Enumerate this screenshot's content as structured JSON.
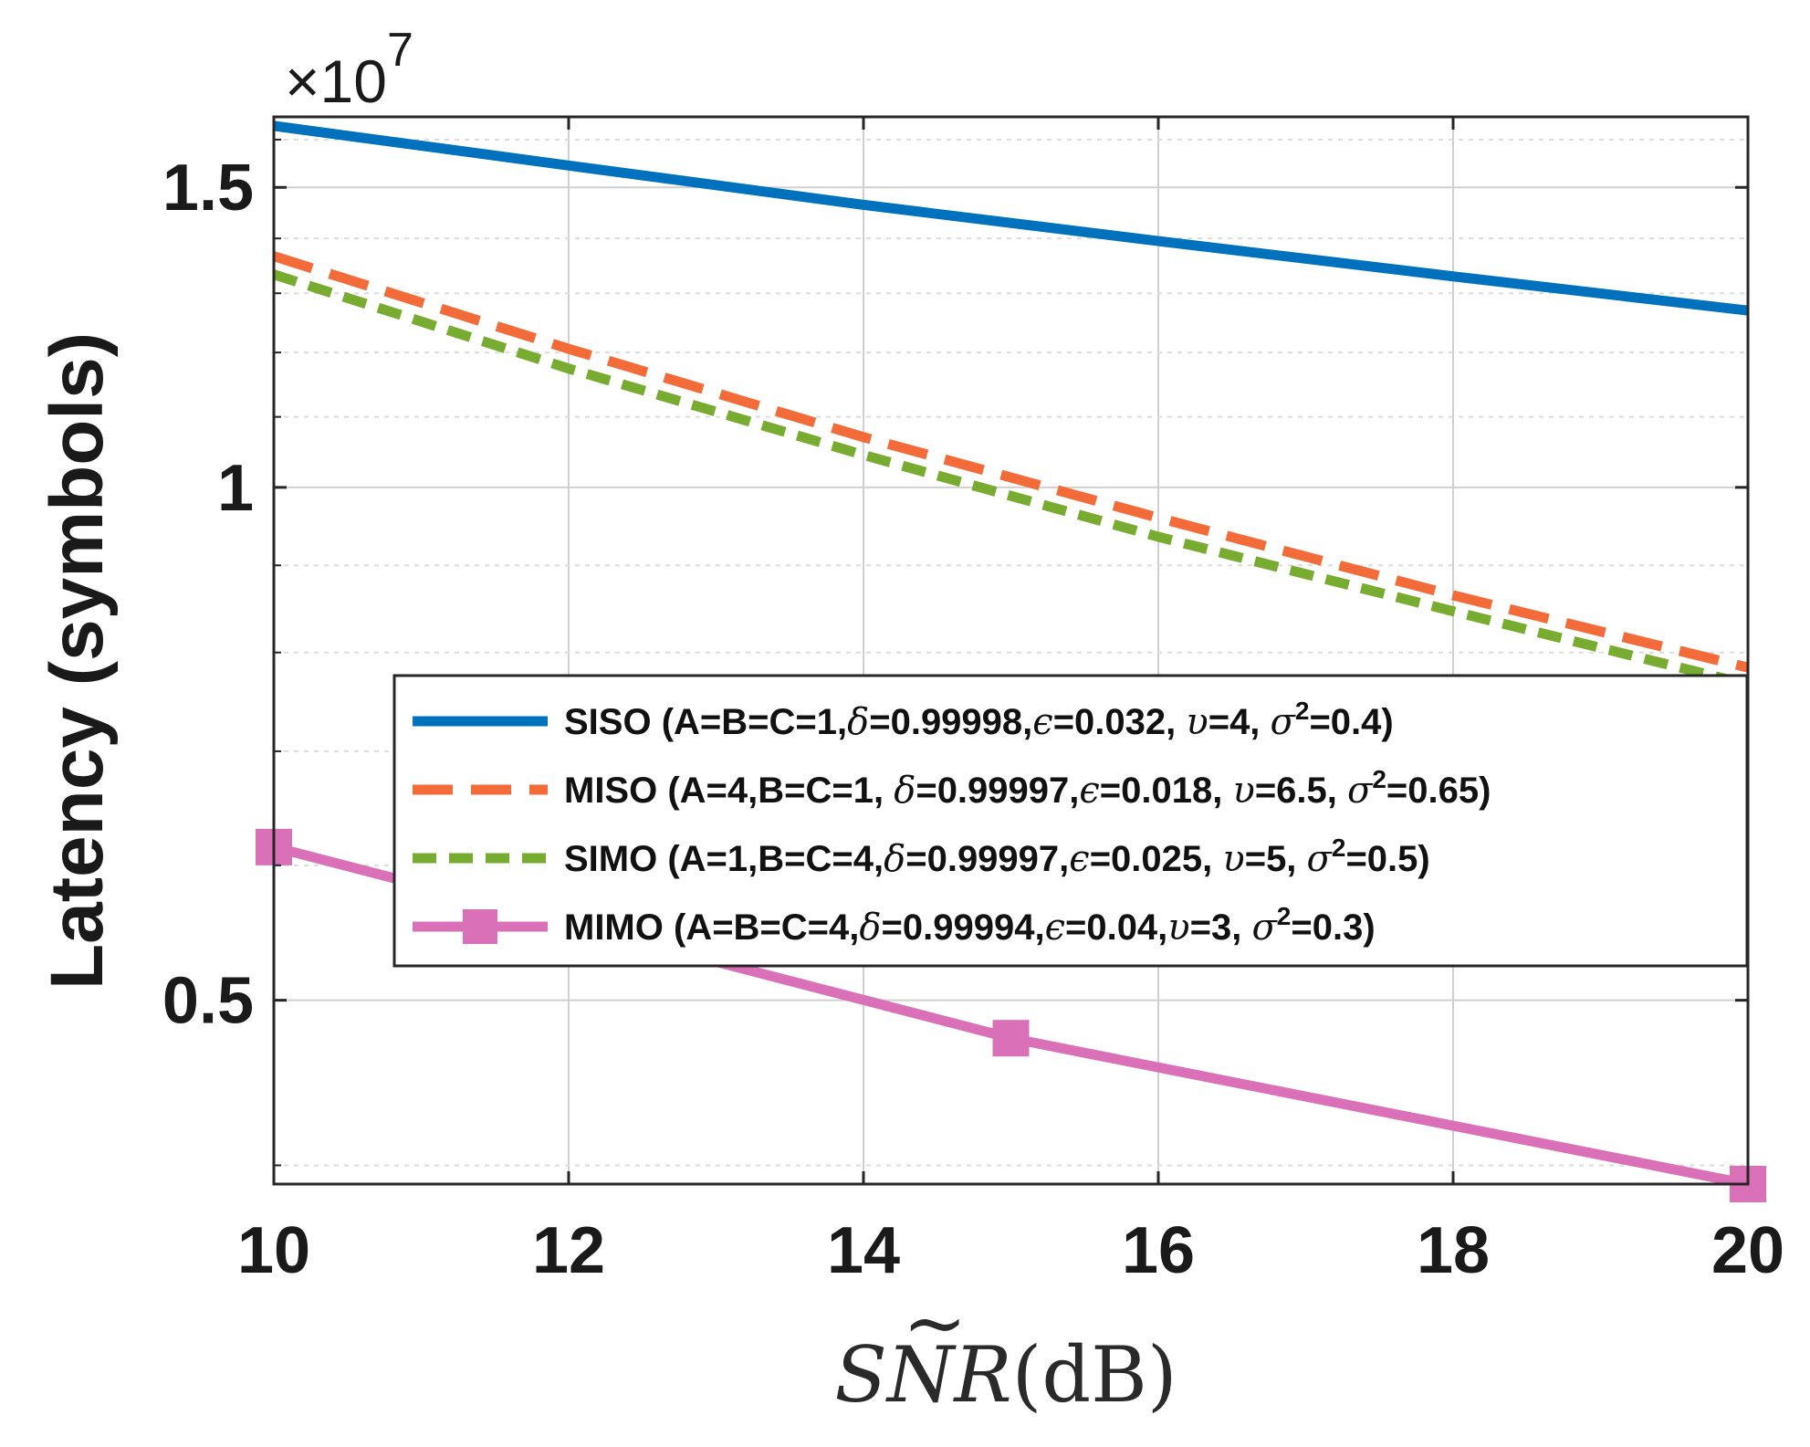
{
  "chart_data": {
    "type": "line",
    "title": "",
    "xlabel": "SÑR(dB)",
    "xlabel_parts": {
      "s": "S",
      "n": "N",
      "tilde": "~",
      "r": "R",
      "unit": "(dB)"
    },
    "ylabel": "Latency (symbols)",
    "y_exponent_label": "×10",
    "y_exponent_power": "7",
    "y_scale": "log",
    "xlim": [
      10,
      20
    ],
    "ylim": [
      0.39,
      1.65
    ],
    "x_ticks": [
      "10",
      "12",
      "14",
      "16",
      "18",
      "20"
    ],
    "x_tick_values": [
      10,
      12,
      14,
      16,
      18,
      20
    ],
    "y_ticks": [
      "0.5",
      "1",
      "1.5"
    ],
    "y_tick_values": [
      0.5,
      1.0,
      1.5
    ],
    "grid": true,
    "legend_position": "center-right",
    "series": [
      {
        "name": "SISO",
        "legend": "SISO (A=B=C=1,δ=0.99998,ϵ=0.032, υ=4, σ²=0.4)",
        "legend_head": "SISO (A=B=C=1,",
        "legend_tail": "=0.99998,",
        "legend_eps": "=0.032, ",
        "legend_nu": "=4, ",
        "legend_sigma": "=0.4)",
        "color": "#0072BD",
        "style": "solid",
        "marker": "none",
        "x": [
          10,
          12,
          14,
          16,
          18,
          20
        ],
        "values": [
          1.63,
          1.545,
          1.465,
          1.395,
          1.33,
          1.27
        ]
      },
      {
        "name": "MISO",
        "legend": "MISO (A=4,B=C=1, δ=0.99997,ϵ=0.018, υ=6.5, σ²=0.65)",
        "legend_head": "MISO (A=4,B=C=1, ",
        "legend_tail": "=0.99997,",
        "legend_eps": "=0.018, ",
        "legend_nu": "=6.5, ",
        "legend_sigma": "=0.65)",
        "color": "#F26B38",
        "style": "dashed",
        "marker": "none",
        "x": [
          10,
          12,
          14,
          16,
          18,
          20
        ],
        "values": [
          1.36,
          1.2,
          1.065,
          0.955,
          0.86,
          0.78
        ]
      },
      {
        "name": "SIMO",
        "legend": "SIMO (A=1,B=C=4,δ=0.99997,ϵ=0.025, υ=5, σ²=0.5)",
        "legend_head": "SIMO (A=1,B=C=4,",
        "legend_tail": "=0.99997,",
        "legend_eps": "=0.025, ",
        "legend_nu": "=5, ",
        "legend_sigma": "=0.5)",
        "color": "#77AC30",
        "style": "dotted-dash",
        "marker": "none",
        "x": [
          10,
          12,
          14,
          16,
          18,
          20
        ],
        "values": [
          1.34,
          1.18,
          1.05,
          0.94,
          0.85,
          0.77
        ]
      },
      {
        "name": "MIMO",
        "legend": "MIMO (A=B=C=4,δ=0.99994,ϵ=0.04,υ=3, σ²=0.3)",
        "legend_head": "MIMO (A=B=C=4,",
        "legend_tail": "=0.99994,",
        "legend_eps": "=0.04,",
        "legend_nu": "=3, ",
        "legend_sigma": "=0.3)",
        "color": "#D970B8",
        "style": "solid",
        "marker": "square",
        "x": [
          10,
          15,
          20
        ],
        "values": [
          0.615,
          0.475,
          0.39
        ]
      }
    ]
  }
}
